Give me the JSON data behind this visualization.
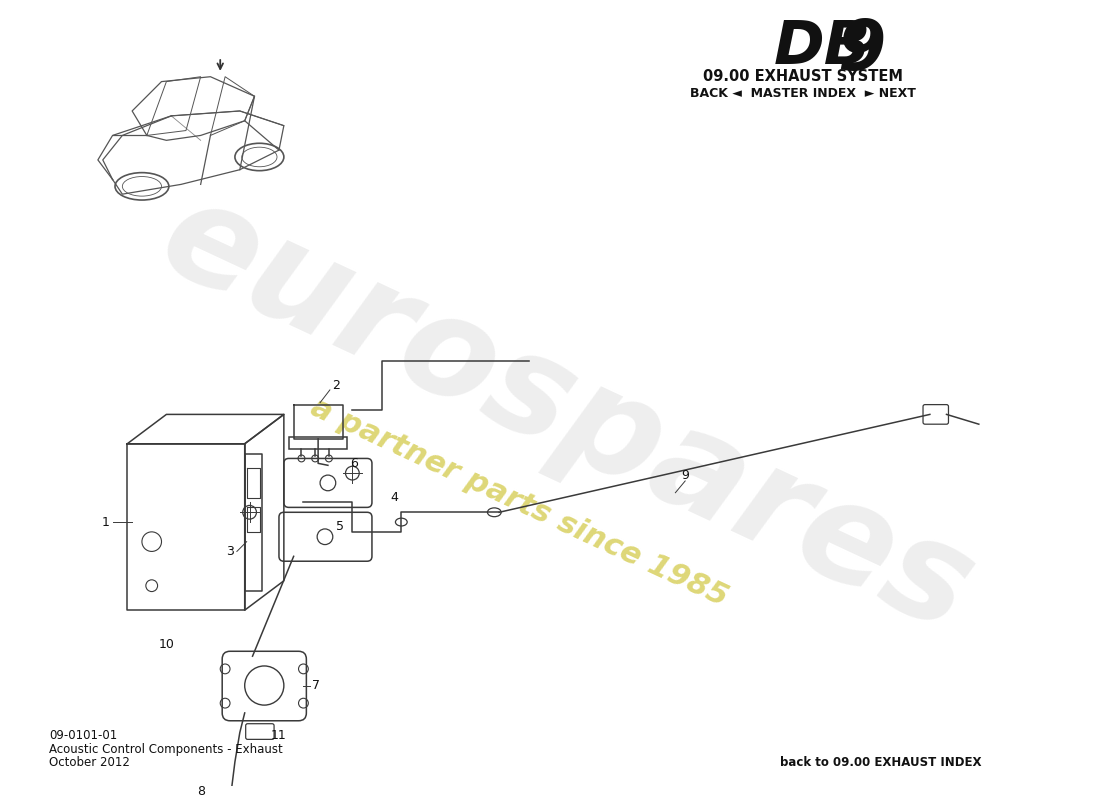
{
  "title_db": "DB",
  "title_9": "9",
  "title_system": "09.00 EXHAUST SYSTEM",
  "nav_text": "BACK ◄  MASTER INDEX  ► NEXT",
  "part_number": "09-0101-01",
  "part_name": "Acoustic Control Components - Exhaust",
  "date": "October 2012",
  "back_link": "back to 09.00 EXHAUST INDEX",
  "watermark_word": "eurospares",
  "watermark_sub": "a partner parts since 1985",
  "bg_color": "#ffffff",
  "dc": "#3a3a3a",
  "wm_gray": "#c8c8c8",
  "wm_yellow": "#d8d060"
}
